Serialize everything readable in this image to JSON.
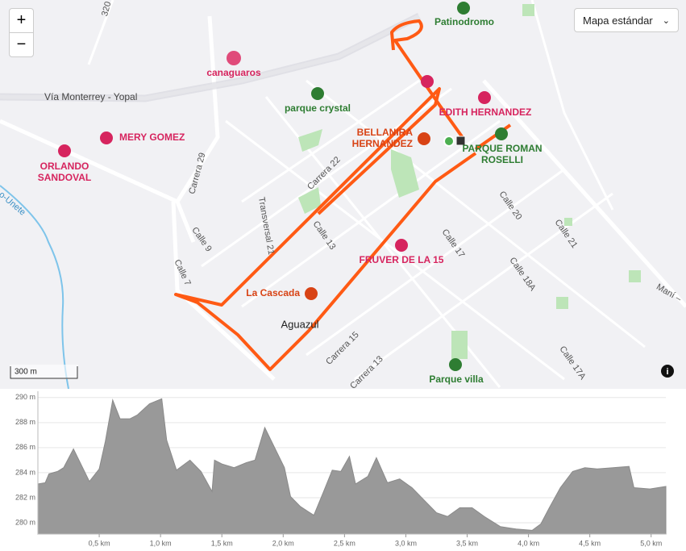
{
  "map": {
    "zoom_in": "+",
    "zoom_out": "−",
    "map_type": "Mapa estándar",
    "scale": "300 m",
    "info": "i",
    "labels": {
      "elevation_road": "320 m",
      "patinodromo": "Patinodromo",
      "canaguaros": "canaguaros",
      "via": "Vía Monterrey - Yopal",
      "parque_crystal": "parque crystal",
      "edith": "EDITH HERNANDEZ",
      "bellanira": [
        "BELLANIRA",
        "HERNANDEZ"
      ],
      "roman": [
        "PARQUE ROMAN",
        "ROSELLI"
      ],
      "mery": "MERY GOMEZ",
      "orlando": [
        "ORLANDO",
        "SANDOVAL"
      ],
      "carrera29": "Carrera 29",
      "carrera22": "Carrera 22",
      "transversal21": "Transversal 21",
      "calle13": "Calle 13",
      "calle9": "Calle 9",
      "calle7": "Calle 7",
      "calle20": "Calle 20",
      "calle21": "Calle 21",
      "calle17": "Calle 17",
      "calle18a": "Calle 18A",
      "fruver": "FRUVER DE LA 15",
      "cascada": "La Cascada",
      "aguazul": "Aguazul",
      "carrera15": "Carrera 15",
      "carrera13": "Carrera 13",
      "parque_villa": "Parque villa",
      "calle17a": "Calle 17A",
      "mani": "Maní –",
      "river": "o-Unete"
    }
  },
  "chart_data": {
    "type": "area",
    "color": "#999999",
    "grid": true,
    "x": [
      0,
      0.06,
      0.09,
      0.16,
      0.21,
      0.29,
      0.35,
      0.42,
      0.5,
      0.55,
      0.61,
      0.67,
      0.75,
      0.81,
      0.91,
      1.01,
      1.05,
      1.13,
      1.24,
      1.33,
      1.42,
      1.44,
      1.5,
      1.6,
      1.7,
      1.77,
      1.85,
      1.93,
      2.01,
      2.06,
      2.14,
      2.25,
      2.33,
      2.4,
      2.47,
      2.54,
      2.59,
      2.69,
      2.76,
      2.85,
      2.95,
      3.05,
      3.15,
      3.25,
      3.34,
      3.44,
      3.54,
      3.64,
      3.77,
      3.9,
      4.03,
      4.1,
      4.17,
      4.26,
      4.36,
      4.46,
      4.56,
      4.69,
      4.82,
      4.86,
      4.99,
      5.12
    ],
    "values": [
      283.1,
      283.2,
      283.9,
      284.1,
      284.4,
      285.9,
      284.7,
      283.3,
      284.3,
      286.5,
      289.8,
      288.3,
      288.3,
      288.6,
      289.5,
      289.9,
      286.6,
      284.2,
      285.0,
      284.1,
      282.5,
      285.0,
      284.7,
      284.4,
      284.8,
      285.0,
      287.6,
      286.0,
      284.4,
      282.1,
      281.3,
      280.6,
      282.5,
      284.2,
      284.1,
      285.3,
      283.1,
      283.7,
      285.2,
      283.2,
      283.5,
      282.8,
      281.8,
      280.8,
      280.5,
      281.2,
      281.2,
      280.5,
      279.7,
      279.5,
      279.4,
      279.9,
      281.2,
      282.8,
      284.1,
      284.4,
      284.3,
      284.4,
      284.5,
      282.8,
      282.7,
      282.9
    ],
    "xlim": [
      0,
      5.12
    ],
    "ylim": [
      279.1,
      290.5
    ],
    "yticks": [
      {
        "value": 280,
        "label": "280 m"
      },
      {
        "value": 282,
        "label": "282 m"
      },
      {
        "value": 284,
        "label": "284 m"
      },
      {
        "value": 286,
        "label": "286 m"
      },
      {
        "value": 288,
        "label": "288 m"
      },
      {
        "value": 290,
        "label": "290 m"
      }
    ],
    "xticks": [
      {
        "value": 0.5,
        "label": "0,5 km"
      },
      {
        "value": 1.0,
        "label": "1,0 km"
      },
      {
        "value": 1.5,
        "label": "1,5 km"
      },
      {
        "value": 2.0,
        "label": "2,0 km"
      },
      {
        "value": 2.5,
        "label": "2,5 km"
      },
      {
        "value": 3.0,
        "label": "3,0 km"
      },
      {
        "value": 3.5,
        "label": "3,5 km"
      },
      {
        "value": 4.0,
        "label": "4,0 km"
      },
      {
        "value": 4.5,
        "label": "4,5 km"
      },
      {
        "value": 5.0,
        "label": "5,0 km"
      }
    ]
  }
}
